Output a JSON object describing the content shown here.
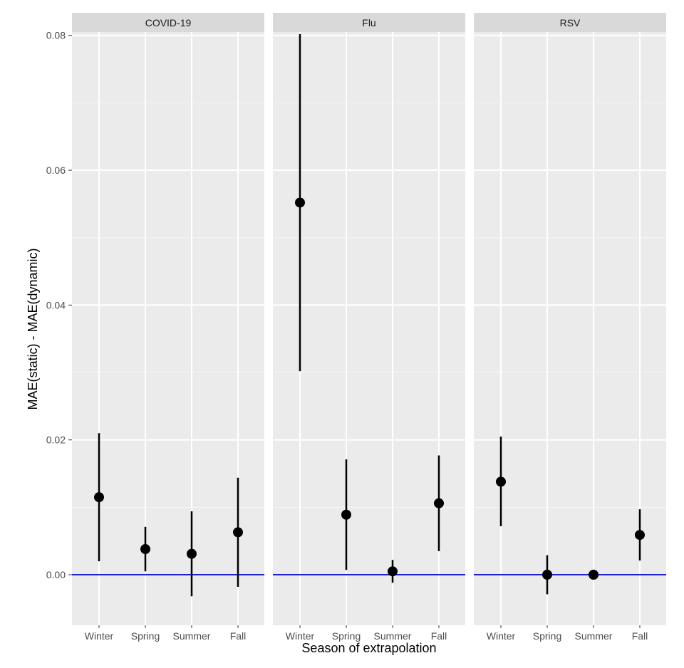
{
  "chart_data": {
    "type": "scatter",
    "xlabel": "Season of extrapolation",
    "ylabel": "MAE(static) - MAE(dynamic)",
    "ylim": [
      -0.0075,
      0.0805
    ],
    "yticks": [
      "0.00",
      "0.02",
      "0.04",
      "0.06",
      "0.08"
    ],
    "ytick_values": [
      0,
      0.02,
      0.04,
      0.06,
      0.08
    ],
    "categories": [
      "Winter",
      "Spring",
      "Summer",
      "Fall"
    ],
    "reference_line": {
      "y": 0,
      "color": "#2020d0"
    },
    "grid": true,
    "facets": [
      {
        "name": "COVID-19",
        "points": [
          {
            "x": "Winter",
            "y": 0.0115,
            "lower": 0.002,
            "upper": 0.021
          },
          {
            "x": "Spring",
            "y": 0.0038,
            "lower": 0.0005,
            "upper": 0.0071
          },
          {
            "x": "Summer",
            "y": 0.0031,
            "lower": -0.0032,
            "upper": 0.0094
          },
          {
            "x": "Fall",
            "y": 0.0063,
            "lower": -0.0018,
            "upper": 0.0144
          }
        ]
      },
      {
        "name": "Flu",
        "points": [
          {
            "x": "Winter",
            "y": 0.0552,
            "lower": 0.0302,
            "upper": 0.0802
          },
          {
            "x": "Spring",
            "y": 0.0089,
            "lower": 0.0007,
            "upper": 0.0171
          },
          {
            "x": "Summer",
            "y": 0.0005,
            "lower": -0.0012,
            "upper": 0.0022
          },
          {
            "x": "Fall",
            "y": 0.0106,
            "lower": 0.0035,
            "upper": 0.0177
          }
        ]
      },
      {
        "name": "RSV",
        "points": [
          {
            "x": "Winter",
            "y": 0.0138,
            "lower": 0.0072,
            "upper": 0.0205
          },
          {
            "x": "Spring",
            "y": 0.0,
            "lower": -0.0029,
            "upper": 0.0029
          },
          {
            "x": "Summer",
            "y": 0.0,
            "lower": -0.0003,
            "upper": 0.0003
          },
          {
            "x": "Fall",
            "y": 0.0059,
            "lower": 0.0021,
            "upper": 0.0097
          }
        ]
      }
    ]
  }
}
